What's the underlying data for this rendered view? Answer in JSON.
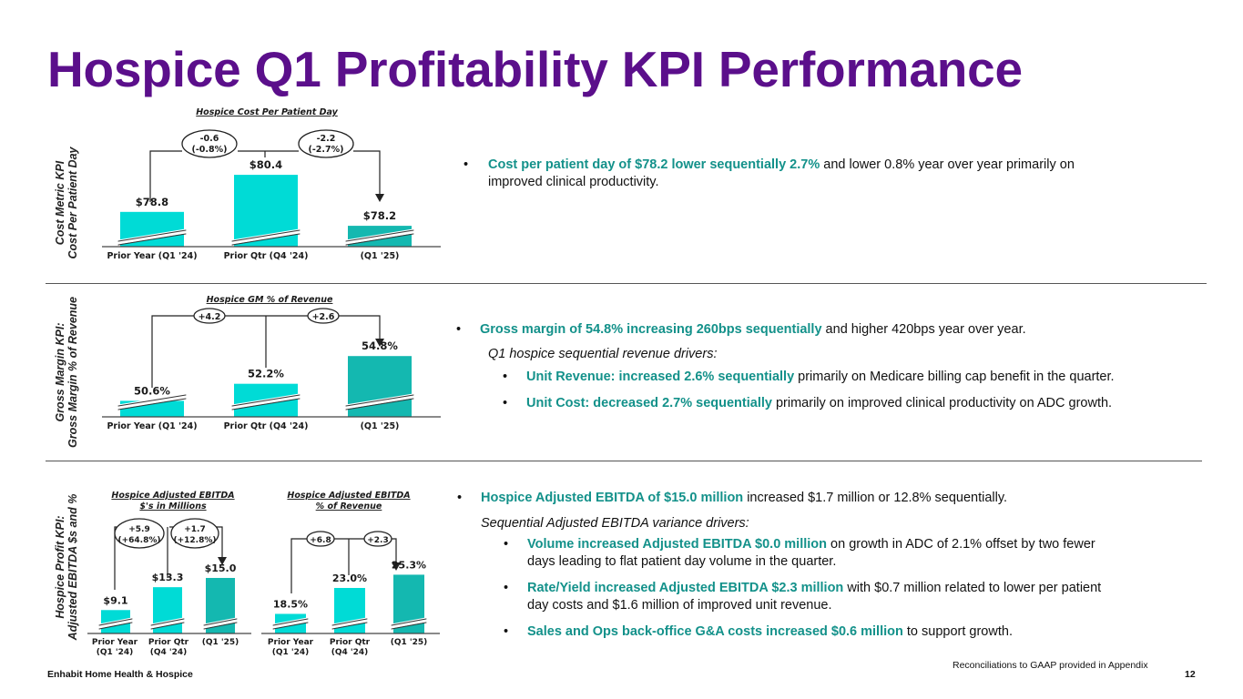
{
  "title": "Hospice Q1 Profitability KPI Performance",
  "colors": {
    "title": "#5b0f8b",
    "bar_light": "#00dbd6",
    "bar_dark": "#14b8b0",
    "highlight": "#13918a"
  },
  "sections": {
    "cost": {
      "label_line1": "Cost Metric KPI",
      "label_line2": "Cost Per Patient Day"
    },
    "gm": {
      "label_line1": "Gross Margin KPI:",
      "label_line2": "Gross Margin % of Revenue"
    },
    "profit": {
      "label_line1": "Hospice Profit KPI:",
      "label_line2": "Adjusted EBITDA $s and %"
    }
  },
  "chart_data": [
    {
      "type": "bar",
      "title": "Hospice Cost Per Patient Day",
      "categories": [
        "Prior Year (Q1 '24)",
        "Prior Qtr (Q4 '24)",
        "(Q1 '25)"
      ],
      "values": [
        78.8,
        80.4,
        78.2
      ],
      "value_labels": [
        "$78.8",
        "$80.4",
        "$78.2"
      ],
      "annotations": [
        {
          "line1": "-0.6",
          "line2": "(-0.8%)"
        },
        {
          "line1": "-2.2",
          "line2": "(-2.7%)"
        }
      ],
      "ylim": [
        77.3,
        80.6
      ]
    },
    {
      "type": "bar",
      "title": "Hospice GM % of Revenue",
      "categories": [
        "Prior Year (Q1 '24)",
        "Prior Qtr (Q4 '24)",
        "(Q1 '25)"
      ],
      "values": [
        50.6,
        52.2,
        54.8
      ],
      "value_labels": [
        "50.6%",
        "52.2%",
        "54.8%"
      ],
      "annotations": [
        {
          "line1": "+4.2"
        },
        {
          "line1": "+2.6"
        }
      ],
      "ylim": [
        49.1,
        55.5
      ]
    },
    {
      "type": "bar",
      "title_line1": "Hospice Adjusted EBITDA",
      "title_line2": "$'s in Millions",
      "categories": [
        [
          "Prior Year",
          "(Q1 '24)"
        ],
        [
          "Prior Qtr",
          "(Q4 '24)"
        ],
        [
          "(Q1 '25)"
        ]
      ],
      "values": [
        9.1,
        13.3,
        15.0
      ],
      "value_labels": [
        "$9.1",
        "$13.3",
        "$15.0"
      ],
      "annotations": [
        {
          "line1": "+5.9",
          "line2": "(+64.8%)"
        },
        {
          "line1": "+1.7",
          "line2": "(+12.8%)"
        }
      ],
      "ylim": [
        4.8,
        15.5
      ]
    },
    {
      "type": "bar",
      "title_line1": "Hospice Adjusted EBITDA",
      "title_line2": "% of Revenue",
      "categories": [
        [
          "Prior Year",
          "(Q1 '24)"
        ],
        [
          "Prior Qtr",
          "(Q4 '24)"
        ],
        [
          "(Q1 '25)"
        ]
      ],
      "values": [
        18.5,
        23.0,
        25.3
      ],
      "value_labels": [
        "18.5%",
        "23.0%",
        "25.3%"
      ],
      "annotations": [
        {
          "line1": "+6.8"
        },
        {
          "line1": "+2.3"
        }
      ],
      "ylim": [
        15.1,
        26.0
      ]
    }
  ],
  "commentary": {
    "cost": {
      "b1_hl": "Cost per patient day of $78.2 lower sequentially 2.7%",
      "b1_rest1": " and lower 0.8% year over year primarily on",
      "b1_rest2": "improved clinical productivity."
    },
    "gm": {
      "b1_hl": "Gross margin of 54.8% increasing 260bps sequentially",
      "b1_rest": " and higher 420bps year over year.",
      "sub": "Q1 hospice sequential revenue drivers:",
      "s1_hl": "Unit Revenue: increased 2.6% sequentially",
      "s1_rest": " primarily on Medicare billing cap benefit in the quarter.",
      "s2_hl": "Unit Cost: decreased 2.7% sequentially",
      "s2_rest": " primarily on improved clinical productivity on ADC growth."
    },
    "profit": {
      "b1_hl": "Hospice Adjusted EBITDA of $15.0 million",
      "b1_rest": " increased $1.7 million or 12.8% sequentially.",
      "sub": "Sequential Adjusted EBITDA variance drivers:",
      "s1_hl": "Volume increased Adjusted EBITDA $0.0 million",
      "s1_rest1": " on growth in ADC of 2.1% offset by two fewer",
      "s1_rest2": "days leading to flat patient day volume in the quarter.",
      "s2_hl": "Rate/Yield increased Adjusted EBITDA $2.3 million",
      "s2_rest1": " with $0.7 million related to lower per patient",
      "s2_rest2": "day costs and $1.6 million of improved unit revenue.",
      "s3_hl": "Sales and Ops back-office G&A costs increased $0.6 million",
      "s3_rest": " to support growth."
    }
  },
  "bullet": "•",
  "footer": {
    "company": "Enhabit Home Health & Hospice",
    "note": "Reconciliations to GAAP provided in Appendix",
    "page": "12"
  }
}
